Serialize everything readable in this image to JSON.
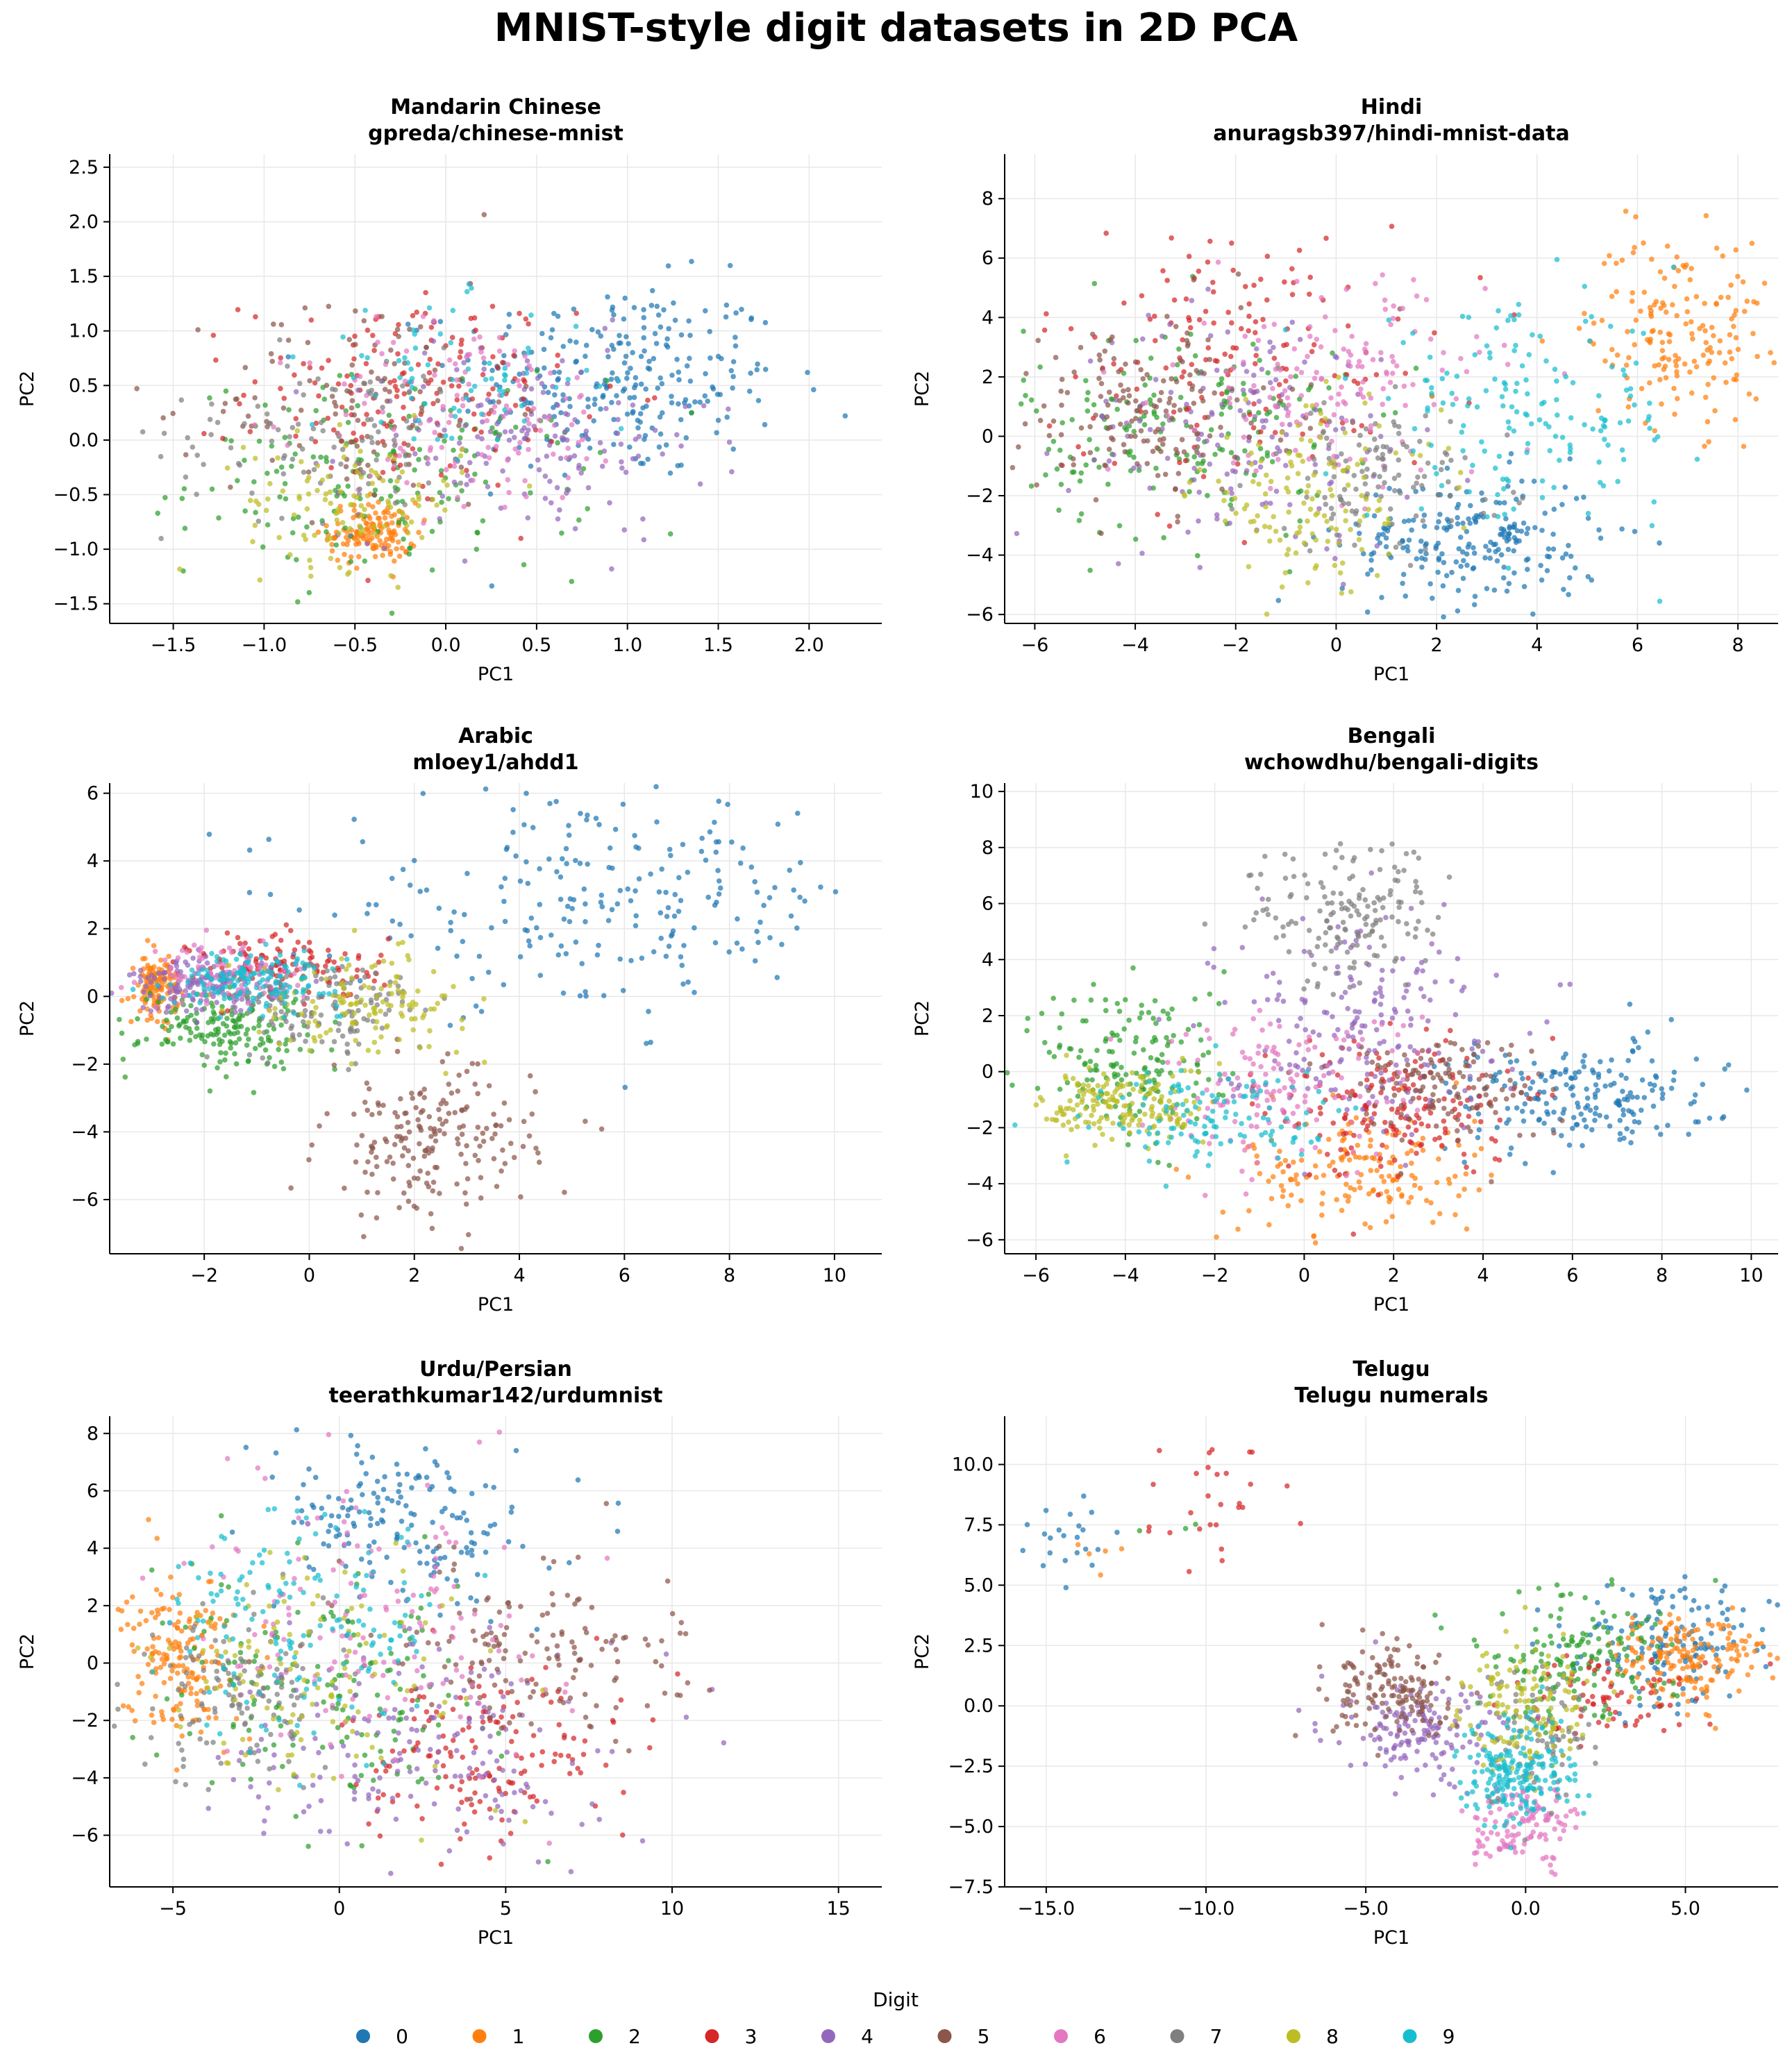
{
  "figure": {
    "title": "MNIST-style digit datasets in 2D PCA",
    "legend": {
      "title": "Digit",
      "placement": "bottom-center",
      "entries": [
        "0",
        "1",
        "2",
        "3",
        "4",
        "5",
        "6",
        "7",
        "8",
        "9"
      ],
      "colors": [
        "#1f77b4",
        "#ff7f0e",
        "#2ca02c",
        "#d62728",
        "#9467bd",
        "#8c564b",
        "#e377c2",
        "#7f7f7f",
        "#bcbd22",
        "#17becf"
      ]
    }
  },
  "chart_data": [
    {
      "type": "scatter",
      "title": "Mandarin Chinese",
      "subtitle": "gpreda/chinese-mnist",
      "xlabel": "PC1",
      "ylabel": "PC2",
      "xlim": [
        -1.85,
        2.4
      ],
      "ylim": [
        -1.68,
        2.62
      ],
      "xticks": [
        -1.5,
        -1.0,
        -0.5,
        0.0,
        0.5,
        1.0,
        1.5,
        2.0
      ],
      "yticks": [
        -1.5,
        -1.0,
        -0.5,
        0.0,
        0.5,
        1.0,
        1.5,
        2.0,
        2.5
      ],
      "tick_decimals": 1,
      "grid": true,
      "clusters": [
        {
          "digit": "0",
          "cx": 0.95,
          "cy": 0.55,
          "sx": 0.45,
          "sy": 0.45,
          "n": 260
        },
        {
          "digit": "1",
          "cx": -0.4,
          "cy": -0.85,
          "sx": 0.12,
          "sy": 0.14,
          "n": 140
        },
        {
          "digit": "2",
          "cx": -0.3,
          "cy": -0.35,
          "sx": 0.55,
          "sy": 0.45,
          "n": 170
        },
        {
          "digit": "3",
          "cx": -0.2,
          "cy": 0.45,
          "sx": 0.45,
          "sy": 0.45,
          "n": 160
        },
        {
          "digit": "4",
          "cx": 0.45,
          "cy": 0.0,
          "sx": 0.5,
          "sy": 0.45,
          "n": 150
        },
        {
          "digit": "5",
          "cx": -0.45,
          "cy": 0.35,
          "sx": 0.4,
          "sy": 0.5,
          "n": 110
        },
        {
          "digit": "6",
          "cx": 0.15,
          "cy": 0.2,
          "sx": 0.45,
          "sy": 0.45,
          "n": 120
        },
        {
          "digit": "7",
          "cx": -0.65,
          "cy": 0.05,
          "sx": 0.45,
          "sy": 0.4,
          "n": 100
        },
        {
          "digit": "8",
          "cx": -0.5,
          "cy": -0.55,
          "sx": 0.3,
          "sy": 0.3,
          "n": 110
        },
        {
          "digit": "9",
          "cx": 0.05,
          "cy": 0.55,
          "sx": 0.4,
          "sy": 0.35,
          "n": 70
        }
      ]
    },
    {
      "type": "scatter",
      "title": "Hindi",
      "subtitle": "anuragsb397/hindi-mnist-data",
      "xlabel": "PC1",
      "ylabel": "PC2",
      "xlim": [
        -6.6,
        8.8
      ],
      "ylim": [
        -6.3,
        9.5
      ],
      "xticks": [
        -6,
        -4,
        -2,
        0,
        2,
        4,
        6,
        8
      ],
      "yticks": [
        -6,
        -4,
        -2,
        0,
        2,
        4,
        6,
        8
      ],
      "tick_decimals": 0,
      "grid": true,
      "clusters": [
        {
          "digit": "0",
          "cx": 2.7,
          "cy": -3.5,
          "sx": 1.3,
          "sy": 1.1,
          "n": 220
        },
        {
          "digit": "1",
          "cx": 6.8,
          "cy": 3.6,
          "sx": 0.9,
          "sy": 1.6,
          "n": 170
        },
        {
          "digit": "2",
          "cx": -3.0,
          "cy": 0.2,
          "sx": 1.6,
          "sy": 1.8,
          "n": 180
        },
        {
          "digit": "3",
          "cx": -2.0,
          "cy": 2.8,
          "sx": 2.0,
          "sy": 2.2,
          "n": 150
        },
        {
          "digit": "4",
          "cx": -1.8,
          "cy": 0.2,
          "sx": 1.7,
          "sy": 2.0,
          "n": 150
        },
        {
          "digit": "5",
          "cx": -3.8,
          "cy": 0.8,
          "sx": 1.4,
          "sy": 1.6,
          "n": 160
        },
        {
          "digit": "6",
          "cx": 0.0,
          "cy": 1.8,
          "sx": 1.5,
          "sy": 1.7,
          "n": 150
        },
        {
          "digit": "7",
          "cx": 0.8,
          "cy": -1.4,
          "sx": 1.3,
          "sy": 1.2,
          "n": 120
        },
        {
          "digit": "8",
          "cx": -0.4,
          "cy": -2.0,
          "sx": 1.2,
          "sy": 1.5,
          "n": 140
        },
        {
          "digit": "9",
          "cx": 3.8,
          "cy": 0.6,
          "sx": 1.6,
          "sy": 1.8,
          "n": 160
        }
      ]
    },
    {
      "type": "scatter",
      "title": "Arabic",
      "subtitle": "mloey1/ahdd1",
      "xlabel": "PC1",
      "ylabel": "PC2",
      "xlim": [
        -3.8,
        10.9
      ],
      "ylim": [
        -7.6,
        6.3
      ],
      "xticks": [
        -2,
        0,
        2,
        4,
        6,
        8,
        10
      ],
      "yticks": [
        -6,
        -4,
        -2,
        0,
        2,
        4,
        6
      ],
      "tick_decimals": 0,
      "grid": true,
      "clusters": [
        {
          "digit": "0",
          "cx": 5.5,
          "cy": 2.8,
          "sx": 2.5,
          "sy": 1.6,
          "n": 230
        },
        {
          "digit": "1",
          "cx": -2.9,
          "cy": 0.3,
          "sx": 0.2,
          "sy": 0.45,
          "n": 130
        },
        {
          "digit": "2",
          "cx": -1.6,
          "cy": -0.9,
          "sx": 0.8,
          "sy": 0.6,
          "n": 170
        },
        {
          "digit": "3",
          "cx": -0.4,
          "cy": 0.9,
          "sx": 0.9,
          "sy": 0.5,
          "n": 120
        },
        {
          "digit": "4",
          "cx": -2.0,
          "cy": 0.3,
          "sx": 0.7,
          "sy": 0.4,
          "n": 150
        },
        {
          "digit": "5",
          "cx": 2.3,
          "cy": -4.3,
          "sx": 1.0,
          "sy": 1.1,
          "n": 190
        },
        {
          "digit": "6",
          "cx": -1.5,
          "cy": 0.6,
          "sx": 0.8,
          "sy": 0.5,
          "n": 100
        },
        {
          "digit": "7",
          "cx": 0.4,
          "cy": -0.4,
          "sx": 0.9,
          "sy": 0.7,
          "n": 130
        },
        {
          "digit": "8",
          "cx": 1.0,
          "cy": -0.2,
          "sx": 1.0,
          "sy": 0.7,
          "n": 130
        },
        {
          "digit": "9",
          "cx": -1.0,
          "cy": 0.5,
          "sx": 0.8,
          "sy": 0.4,
          "n": 150
        }
      ]
    },
    {
      "type": "scatter",
      "title": "Bengali",
      "subtitle": "wchowdhu/bengali-digits",
      "xlabel": "PC1",
      "ylabel": "PC2",
      "xlim": [
        -6.7,
        10.6
      ],
      "ylim": [
        -6.5,
        10.3
      ],
      "xticks": [
        -6,
        -4,
        -2,
        0,
        2,
        4,
        6,
        8,
        10
      ],
      "yticks": [
        -6,
        -4,
        -2,
        0,
        2,
        4,
        6,
        8,
        10
      ],
      "tick_decimals": 0,
      "grid": true,
      "clusters": [
        {
          "digit": "0",
          "cx": 6.2,
          "cy": -0.9,
          "sx": 1.5,
          "sy": 1.0,
          "n": 200
        },
        {
          "digit": "1",
          "cx": 1.2,
          "cy": -3.5,
          "sx": 1.3,
          "sy": 1.2,
          "n": 170
        },
        {
          "digit": "2",
          "cx": -3.8,
          "cy": 0.3,
          "sx": 1.0,
          "sy": 1.5,
          "n": 160
        },
        {
          "digit": "3",
          "cx": 2.0,
          "cy": -1.2,
          "sx": 1.3,
          "sy": 1.3,
          "n": 180
        },
        {
          "digit": "4",
          "cx": 1.2,
          "cy": 1.8,
          "sx": 1.6,
          "sy": 1.8,
          "n": 200
        },
        {
          "digit": "5",
          "cx": 3.0,
          "cy": -0.5,
          "sx": 1.2,
          "sy": 1.0,
          "n": 130
        },
        {
          "digit": "6",
          "cx": -0.6,
          "cy": -0.5,
          "sx": 1.5,
          "sy": 1.4,
          "n": 140
        },
        {
          "digit": "7",
          "cx": 1.0,
          "cy": 5.5,
          "sx": 1.1,
          "sy": 1.3,
          "n": 160
        },
        {
          "digit": "8",
          "cx": -4.0,
          "cy": -1.2,
          "sx": 0.9,
          "sy": 0.7,
          "n": 170
        },
        {
          "digit": "9",
          "cx": -2.0,
          "cy": -1.6,
          "sx": 1.5,
          "sy": 0.9,
          "n": 120
        }
      ]
    },
    {
      "type": "scatter",
      "title": "Urdu/Persian",
      "subtitle": "teerathkumar142/urdumnist",
      "xlabel": "PC1",
      "ylabel": "PC2",
      "xlim": [
        -6.9,
        16.3
      ],
      "ylim": [
        -7.8,
        8.6
      ],
      "xticks": [
        -5,
        0,
        5,
        10,
        15
      ],
      "yticks": [
        -6,
        -4,
        -2,
        0,
        2,
        4,
        6,
        8
      ],
      "tick_decimals": 0,
      "grid": true,
      "clusters": [
        {
          "digit": "0",
          "cx": 2.0,
          "cy": 4.8,
          "sx": 2.0,
          "sy": 1.5,
          "n": 170
        },
        {
          "digit": "1",
          "cx": -4.8,
          "cy": 0.3,
          "sx": 0.8,
          "sy": 1.4,
          "n": 170
        },
        {
          "digit": "2",
          "cx": -0.5,
          "cy": -1.2,
          "sx": 2.5,
          "sy": 2.0,
          "n": 150
        },
        {
          "digit": "3",
          "cx": 4.5,
          "cy": -3.3,
          "sx": 2.0,
          "sy": 1.5,
          "n": 150
        },
        {
          "digit": "4",
          "cx": 2.5,
          "cy": -3.0,
          "sx": 2.8,
          "sy": 1.9,
          "n": 180
        },
        {
          "digit": "5",
          "cx": 6.0,
          "cy": 0.5,
          "sx": 2.2,
          "sy": 1.6,
          "n": 150
        },
        {
          "digit": "6",
          "cx": 1.0,
          "cy": 1.5,
          "sx": 2.8,
          "sy": 2.5,
          "n": 150
        },
        {
          "digit": "7",
          "cx": -3.0,
          "cy": -1.0,
          "sx": 1.6,
          "sy": 1.5,
          "n": 130
        },
        {
          "digit": "8",
          "cx": -0.5,
          "cy": -0.5,
          "sx": 2.5,
          "sy": 2.0,
          "n": 120
        },
        {
          "digit": "9",
          "cx": -1.0,
          "cy": 1.5,
          "sx": 2.2,
          "sy": 2.0,
          "n": 150
        }
      ]
    },
    {
      "type": "scatter",
      "title": "Telugu",
      "subtitle": "Telugu numerals",
      "xlabel": "PC1",
      "ylabel": "PC2",
      "xlim": [
        -16.3,
        7.9
      ],
      "ylim": [
        -7.5,
        12.0
      ],
      "xticks": [
        -15,
        -10,
        -5,
        0,
        5
      ],
      "yticks": [
        -7.5,
        -5.0,
        -2.5,
        0.0,
        2.5,
        5.0,
        7.5,
        10.0
      ],
      "tick_decimals": 1,
      "grid": true,
      "clusters": [
        {
          "digit": "0",
          "cx": 4.6,
          "cy": 2.5,
          "sx": 1.6,
          "sy": 1.3,
          "n": 150
        },
        {
          "digit": "1",
          "cx": 5.0,
          "cy": 2.0,
          "sx": 1.2,
          "sy": 1.0,
          "n": 170
        },
        {
          "digit": "2",
          "cx": 1.5,
          "cy": 2.0,
          "sx": 1.6,
          "sy": 1.3,
          "n": 150
        },
        {
          "digit": "3",
          "cx": 2.5,
          "cy": 0.2,
          "sx": 1.6,
          "sy": 0.9,
          "n": 70
        },
        {
          "digit": "4",
          "cx": -3.3,
          "cy": -1.2,
          "sx": 1.2,
          "sy": 1.0,
          "n": 150
        },
        {
          "digit": "5",
          "cx": -4.0,
          "cy": 0.5,
          "sx": 1.1,
          "sy": 0.9,
          "n": 150
        },
        {
          "digit": "6",
          "cx": 0.0,
          "cy": -5.0,
          "sx": 0.8,
          "sy": 0.8,
          "n": 120
        },
        {
          "digit": "7",
          "cx": 0.3,
          "cy": -1.0,
          "sx": 1.0,
          "sy": 1.5,
          "n": 90
        },
        {
          "digit": "8",
          "cx": 0.0,
          "cy": 0.0,
          "sx": 1.0,
          "sy": 1.3,
          "n": 140
        },
        {
          "digit": "9",
          "cx": -0.2,
          "cy": -2.8,
          "sx": 0.9,
          "sy": 1.1,
          "n": 200
        }
      ],
      "outliers": [
        {
          "digit": "0",
          "x": -14.5,
          "y": 7.0,
          "sx": 0.6,
          "sy": 0.9,
          "n": 22
        },
        {
          "digit": "1",
          "x": -13.5,
          "y": 6.5,
          "sx": 0.5,
          "sy": 1.0,
          "n": 5
        },
        {
          "digit": "3",
          "x": -9.8,
          "y": 8.5,
          "sx": 1.2,
          "sy": 1.2,
          "n": 28
        },
        {
          "digit": "2",
          "x": -11.0,
          "y": 6.8,
          "sx": 1.0,
          "sy": 0.5,
          "n": 3
        }
      ]
    }
  ]
}
